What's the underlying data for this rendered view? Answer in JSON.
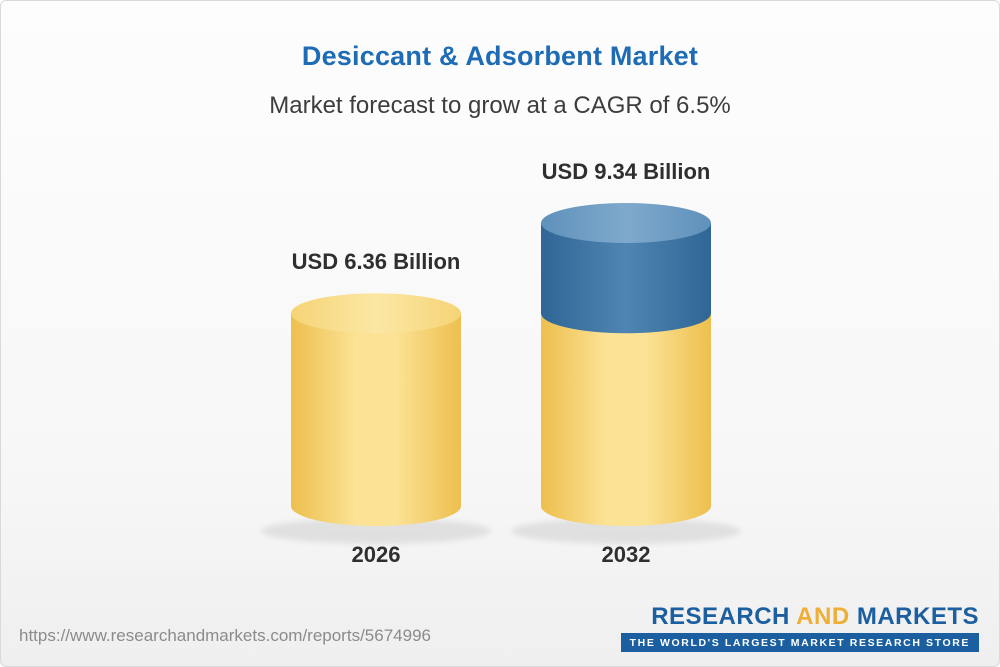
{
  "header": {
    "title": "Desiccant & Adsorbent Market",
    "subtitle": "Market forecast to grow at a CAGR of 6.5%"
  },
  "chart_data": {
    "type": "bar",
    "categories": [
      "2026",
      "2032"
    ],
    "values": [
      6.36,
      9.34
    ],
    "value_labels": [
      "USD 6.36 Billion",
      "USD 9.34 Billion"
    ],
    "unit": "USD Billion",
    "cagr": "6.5%",
    "title": "Desiccant & Adsorbent Market",
    "subtitle": "Market forecast to grow at a CAGR of 6.5%",
    "xlabel": "",
    "ylabel": "",
    "ylim": [
      0,
      10
    ],
    "growth_split": true,
    "bar_colors": {
      "base": "#f5cf63",
      "growth": "#39719f"
    },
    "legend": "none",
    "grid": false,
    "notes": "2032 cylinder shows growth above the 2026 value as a blue segment"
  },
  "footer": {
    "url": "https://www.researchandmarkets.com/reports/5674996",
    "logo": {
      "part1": "RESEARCH",
      "part2": "AND",
      "part3": "MARKETS",
      "tagline": "THE WORLD'S LARGEST MARKET RESEARCH STORE"
    }
  }
}
